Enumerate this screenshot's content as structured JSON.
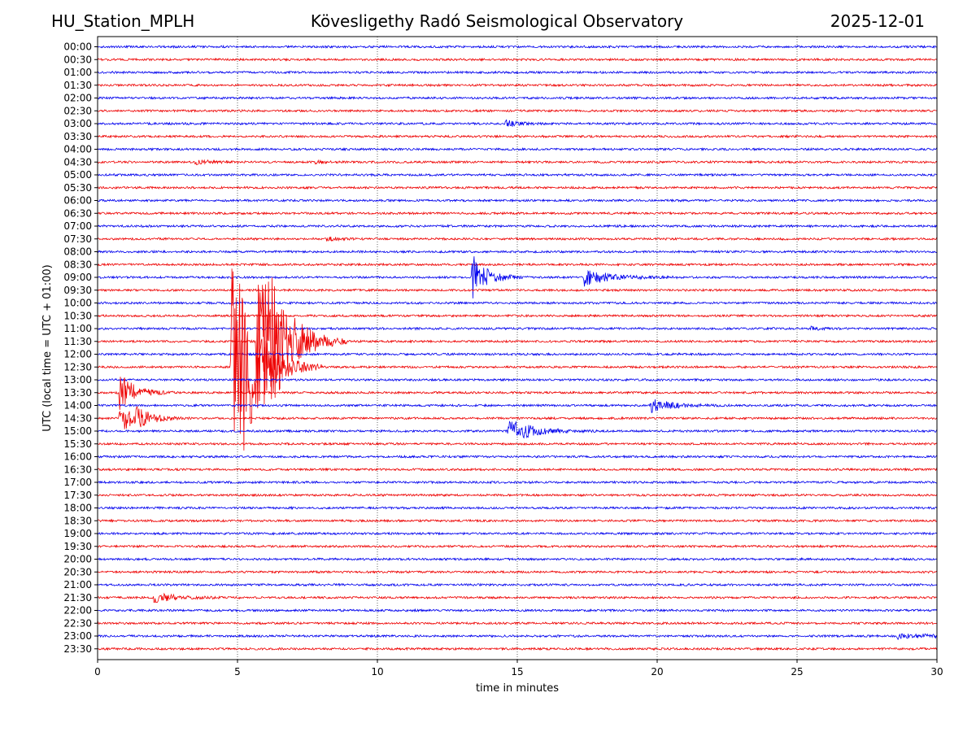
{
  "header": {
    "station": "HU_Station_MPLH",
    "observatory": "Kövesligethy Radó Seismological Observatory",
    "date": "2025-12-01"
  },
  "chart_data": {
    "type": "line",
    "title": "Kövesligethy Radó Seismological Observatory",
    "xlabel": "time in minutes",
    "ylabel": "UTC (local time = UTC + 01:00)",
    "xlim": [
      0,
      30
    ],
    "x_ticks": [
      0,
      5,
      10,
      15,
      20,
      25,
      30
    ],
    "x_tick_labels": [
      "0",
      "5",
      "10",
      "15",
      "20",
      "25",
      "30"
    ],
    "grid": "vertical dotted at 5, 10, 15, 20, 25",
    "row_labels": [
      "00:00",
      "00:30",
      "01:00",
      "01:30",
      "02:00",
      "02:30",
      "03:00",
      "03:30",
      "04:00",
      "04:30",
      "05:00",
      "05:30",
      "06:00",
      "06:30",
      "07:00",
      "07:30",
      "08:00",
      "08:30",
      "09:00",
      "09:30",
      "10:00",
      "10:30",
      "11:00",
      "11:30",
      "12:00",
      "12:30",
      "13:00",
      "13:30",
      "14:00",
      "14:30",
      "15:00",
      "15:30",
      "16:00",
      "16:30",
      "17:00",
      "17:30",
      "18:00",
      "18:30",
      "19:00",
      "19:30",
      "20:00",
      "20:30",
      "21:00",
      "21:30",
      "22:00",
      "22:30",
      "23:00",
      "23:30"
    ],
    "colors": [
      "#0000ee",
      "#ee0000"
    ],
    "noise_level": 1.3,
    "events": [
      {
        "row": 6,
        "t": 14.6,
        "amp": 4,
        "dur": 0.5
      },
      {
        "row": 9,
        "t": 3.5,
        "amp": 2.5,
        "dur": 0.6
      },
      {
        "row": 9,
        "t": 7.8,
        "amp": 2,
        "dur": 0.3
      },
      {
        "row": 15,
        "t": 8.2,
        "amp": 2,
        "dur": 0.4
      },
      {
        "row": 18,
        "t": 13.4,
        "amp": 28,
        "dur": 0.5
      },
      {
        "row": 18,
        "t": 17.4,
        "amp": 10,
        "dur": 0.9
      },
      {
        "row": 22,
        "t": 25.5,
        "amp": 2,
        "dur": 0.3
      },
      {
        "row": 23,
        "t": 5.7,
        "amp": 115,
        "dur": 0.8
      },
      {
        "row": 23,
        "t": 6.1,
        "amp": 30,
        "dur": 0.7
      },
      {
        "row": 25,
        "t": 4.8,
        "amp": 125,
        "dur": 0.8
      },
      {
        "row": 25,
        "t": 5.1,
        "amp": 40,
        "dur": 0.5
      },
      {
        "row": 27,
        "t": 0.8,
        "amp": 25,
        "dur": 0.5
      },
      {
        "row": 28,
        "t": 19.8,
        "amp": 8,
        "dur": 0.7
      },
      {
        "row": 29,
        "t": 0.8,
        "amp": 18,
        "dur": 0.5
      },
      {
        "row": 29,
        "t": 1.4,
        "amp": 10,
        "dur": 0.5
      },
      {
        "row": 30,
        "t": 14.7,
        "amp": 15,
        "dur": 0.8
      },
      {
        "row": 43,
        "t": 2.0,
        "amp": 6,
        "dur": 0.8
      },
      {
        "row": 46,
        "t": 28.6,
        "amp": 3,
        "dur": 1.3
      }
    ]
  }
}
